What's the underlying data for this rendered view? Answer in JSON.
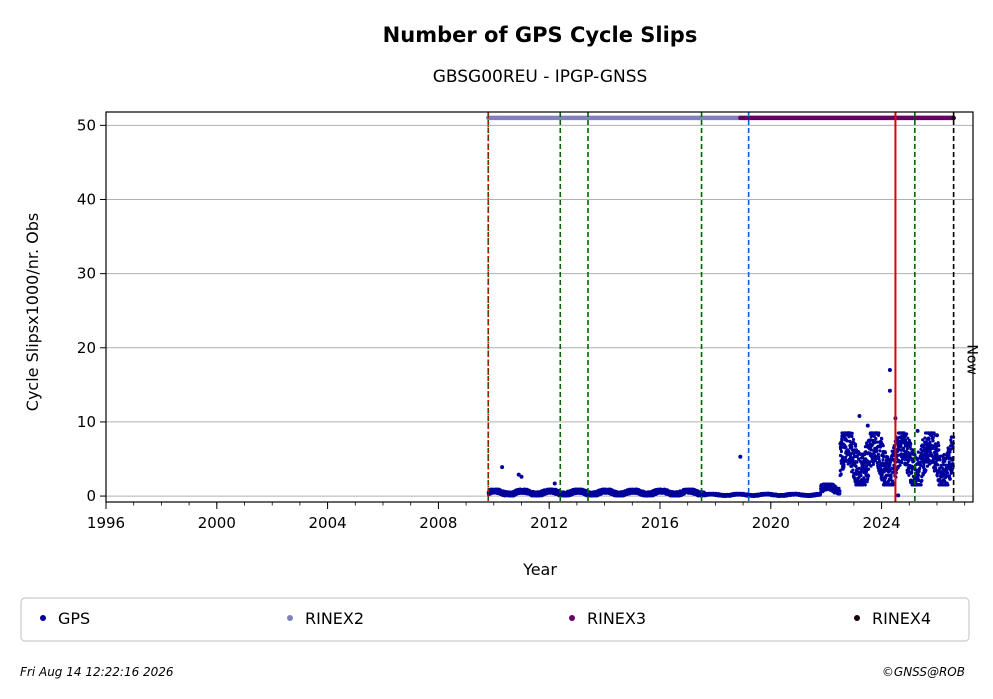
{
  "chart_data": {
    "type": "scatter",
    "title": "Number of GPS Cycle Slips",
    "subtitle": "GBSG00REU - IPGP-GNSS",
    "xlabel": "Year",
    "ylabel": "Cycle Slipsx1000/nr. Obs",
    "xlim": [
      1996,
      2027.3
    ],
    "ylim": [
      -0.8,
      51.8
    ],
    "x_ticks": [
      1996,
      2000,
      2004,
      2008,
      2012,
      2016,
      2020,
      2024
    ],
    "y_ticks": [
      0,
      10,
      20,
      30,
      40,
      50
    ],
    "grid": "horizontal",
    "colors": {
      "gps": "#00009c",
      "rinex2": "#8080c0",
      "rinex3": "#660066",
      "rinex4": "#1a0010",
      "event_green": "#006400",
      "event_blue": "#0066cc",
      "event_red": "#dd0000",
      "now": "#000000"
    },
    "series": [
      {
        "name": "GPS",
        "segments": [
          {
            "x_start": 2009.8,
            "x_end": 2017.6,
            "y_low": 0.05,
            "y_high": 0.9
          },
          {
            "x_start": 2017.6,
            "x_end": 2021.8,
            "y_low": 0.0,
            "y_high": 0.35
          },
          {
            "x_start": 2021.8,
            "x_end": 2022.5,
            "y_low": 0.3,
            "y_high": 1.6
          },
          {
            "x_start": 2022.5,
            "x_end": 2026.6,
            "y_low": 1.5,
            "y_high": 8.5
          }
        ],
        "points": [
          {
            "x": 2010.3,
            "y": 3.9
          },
          {
            "x": 2010.9,
            "y": 2.9
          },
          {
            "x": 2011.0,
            "y": 2.6
          },
          {
            "x": 2012.2,
            "y": 1.7
          },
          {
            "x": 2018.9,
            "y": 5.3
          },
          {
            "x": 2023.2,
            "y": 10.8
          },
          {
            "x": 2023.5,
            "y": 9.5
          },
          {
            "x": 2024.3,
            "y": 17.0
          },
          {
            "x": 2024.3,
            "y": 14.2
          },
          {
            "x": 2024.5,
            "y": 10.5
          },
          {
            "x": 2024.6,
            "y": 0.1
          },
          {
            "x": 2025.3,
            "y": 8.8
          },
          {
            "x": 2026.0,
            "y": 8.2
          }
        ]
      },
      {
        "name": "RINEX2",
        "y": 51,
        "x_start": 2009.8,
        "x_end": 2018.9
      },
      {
        "name": "RINEX3",
        "y": 51,
        "x_start": 2018.9,
        "x_end": 2026.6
      },
      {
        "name": "RINEX4",
        "y": 51,
        "x_start": 2026.6,
        "x_end": 2026.6
      }
    ],
    "event_lines": [
      {
        "x": 2009.8,
        "color": "event_green",
        "style": "dashed"
      },
      {
        "x": 2009.8,
        "color": "event_red",
        "style": "dotted"
      },
      {
        "x": 2012.4,
        "color": "event_green",
        "style": "dashed"
      },
      {
        "x": 2013.4,
        "color": "event_green",
        "style": "dashed"
      },
      {
        "x": 2017.5,
        "color": "event_green",
        "style": "dashed"
      },
      {
        "x": 2019.2,
        "color": "event_blue",
        "style": "dashed"
      },
      {
        "x": 2024.5,
        "color": "event_red",
        "style": "solid"
      },
      {
        "x": 2025.2,
        "color": "event_green",
        "style": "dashed"
      },
      {
        "x": 2026.6,
        "color": "now",
        "style": "dashed"
      }
    ],
    "now_label": "Now",
    "legend": {
      "placement": "bottom",
      "entries": [
        {
          "label": "GPS",
          "color": "gps"
        },
        {
          "label": "RINEX2",
          "color": "rinex2"
        },
        {
          "label": "RINEX3",
          "color": "rinex3"
        },
        {
          "label": "RINEX4",
          "color": "rinex4"
        }
      ]
    }
  },
  "footer": {
    "timestamp": "Fri Aug 14 12:22:16 2026",
    "credit": "©GNSS@ROB"
  }
}
